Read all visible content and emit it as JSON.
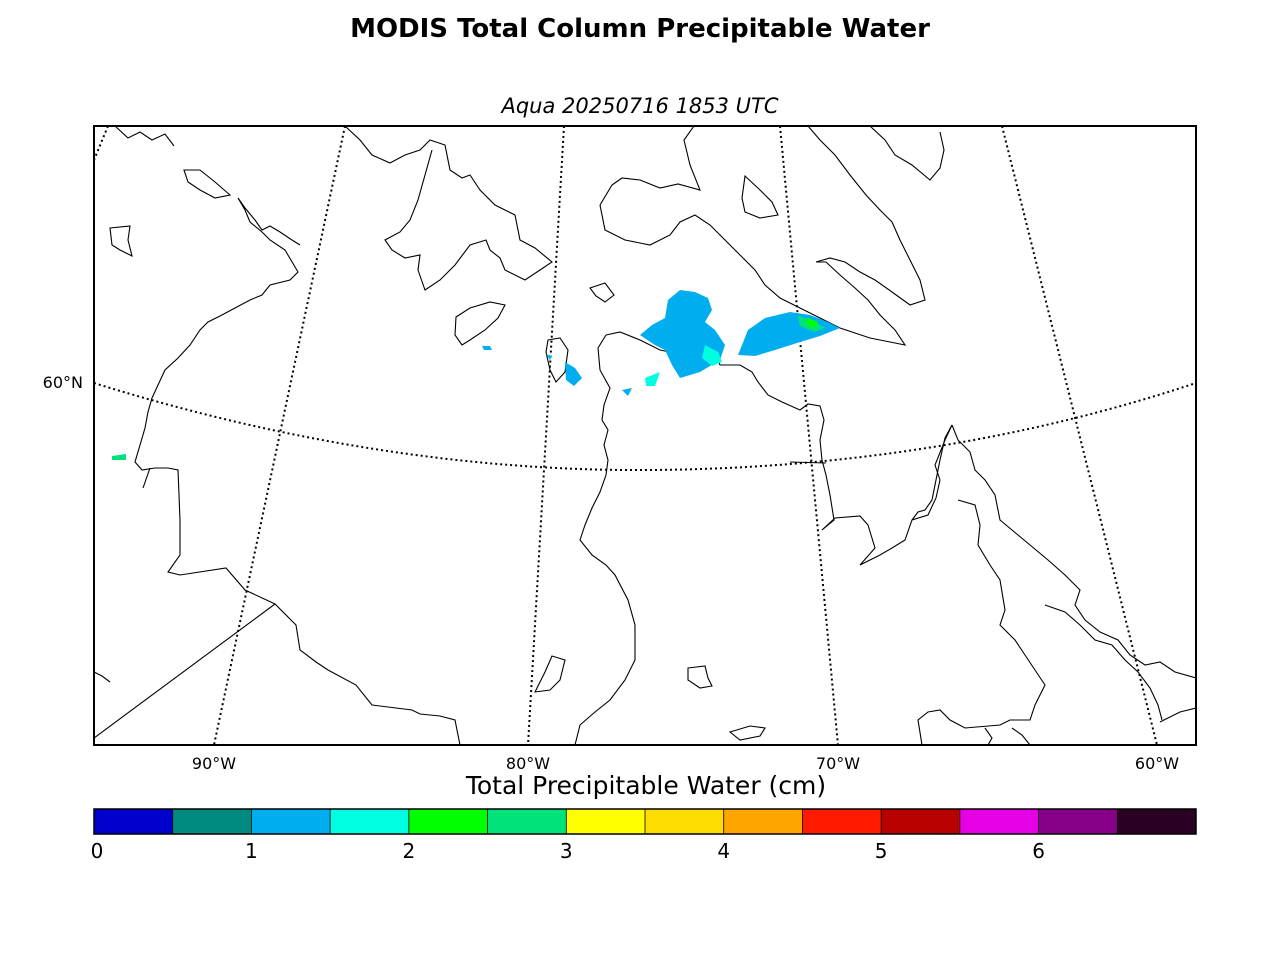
{
  "title": "MODIS Total Column Precipitable Water",
  "subtitle": "Aqua 20250716 1853 UTC",
  "map": {
    "lat_labels": [
      {
        "text": "60°N",
        "lat": 60
      }
    ],
    "lon_labels": [
      {
        "text": "90°W",
        "lon": -90
      },
      {
        "text": "80°W",
        "lon": -80
      },
      {
        "text": "70°W",
        "lon": -70
      },
      {
        "text": "60°W",
        "lon": -60
      }
    ],
    "parallels_drawn": [
      60
    ],
    "meridians_drawn": [
      -90,
      -80,
      -70,
      -60
    ]
  },
  "colorbar": {
    "label": "Total Precipitable Water (cm)",
    "ticks": [
      "0",
      "1",
      "2",
      "3",
      "4",
      "5",
      "6"
    ],
    "bin_width": 0.5,
    "colors": [
      "#0000cc",
      "#008b80",
      "#00aeef",
      "#00ffe0",
      "#00ff00",
      "#00e27a",
      "#ffff00",
      "#ffdc00",
      "#ffa500",
      "#ff1a00",
      "#b80000",
      "#e600e6",
      "#880088",
      "#2b0025"
    ]
  }
}
